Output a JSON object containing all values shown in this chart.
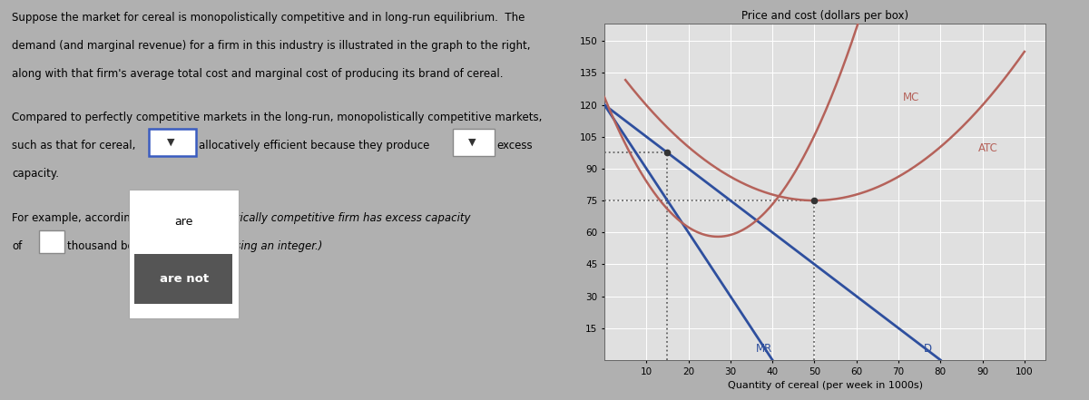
{
  "title": "Price and cost (dollars per box)",
  "xlabel": "Quantity of cereal (per week in 1000s)",
  "x_ticks": [
    10,
    20,
    30,
    40,
    50,
    60,
    70,
    80,
    90,
    100
  ],
  "y_ticks": [
    15,
    30,
    45,
    60,
    75,
    90,
    105,
    120,
    135,
    150
  ],
  "xlim": [
    0,
    105
  ],
  "ylim": [
    0,
    158
  ],
  "demand_color": "#2e4f9e",
  "mr_color": "#2e4f9e",
  "mc_color": "#b5625a",
  "atc_color": "#b5625a",
  "dotted_color": "#666666",
  "dot_q1": 15,
  "dot_p1": 97.5,
  "dot_q2": 50,
  "dot_p2": 75,
  "label_MC": "MC",
  "label_ATC": "ATC",
  "label_MR": "MR",
  "label_D": "D",
  "chart_bg": "#e0e0e0",
  "grid_color": "#ffffff",
  "fig_bg": "#b0b0b0",
  "text_bg": "#c8c8c8"
}
